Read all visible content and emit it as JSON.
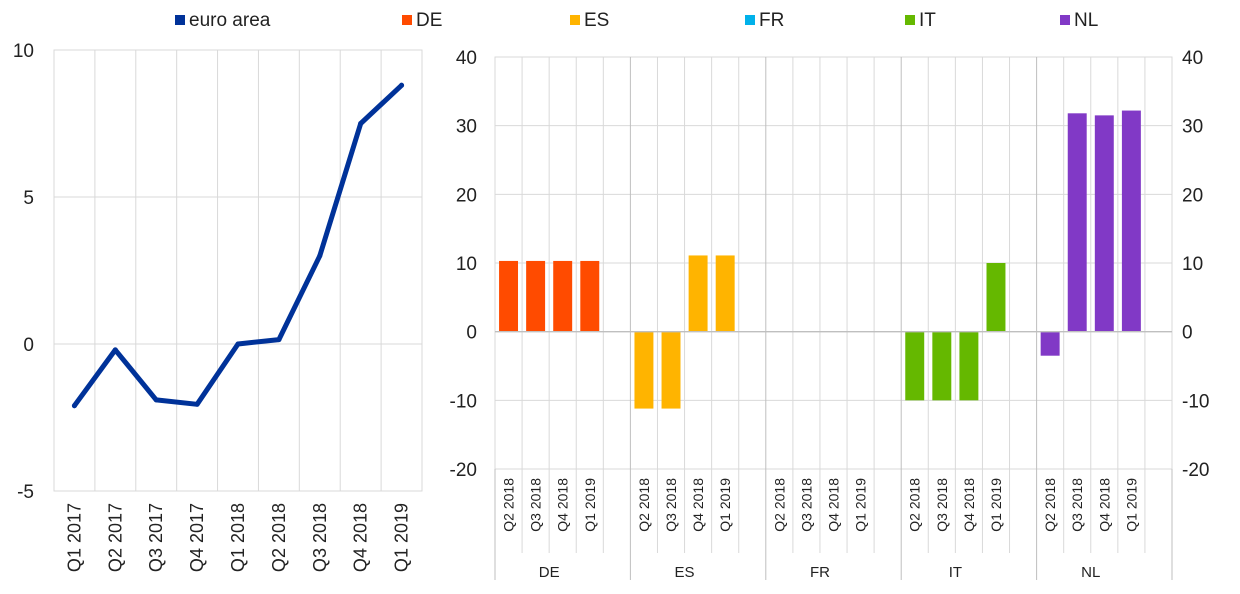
{
  "legend": [
    {
      "label": "euro area",
      "color": "#003299"
    },
    {
      "label": "DE",
      "color": "#FF4B00"
    },
    {
      "label": "ES",
      "color": "#FFB400"
    },
    {
      "label": "FR",
      "color": "#00B1EA"
    },
    {
      "label": "IT",
      "color": "#65B800"
    },
    {
      "label": "NL",
      "color": "#8139C6"
    }
  ],
  "chart_data": [
    {
      "type": "line",
      "categories": [
        "Q1 2017",
        "Q2 2017",
        "Q3 2017",
        "Q4 2017",
        "Q1 2018",
        "Q2 2018",
        "Q3 2018",
        "Q4 2018",
        "Q1 2019"
      ],
      "series": [
        {
          "name": "euro area",
          "color": "#003299",
          "values": [
            -2.1,
            -0.2,
            -1.9,
            -2.05,
            0.0,
            0.15,
            3.0,
            7.5,
            8.8
          ]
        }
      ],
      "ylim": [
        -5,
        10
      ],
      "yticks": [
        -5,
        0,
        5,
        10
      ],
      "ytick_labels": [
        "-5",
        "0",
        "5",
        "10"
      ],
      "grid": true
    },
    {
      "type": "bar",
      "groups": [
        {
          "label": "DE",
          "color": "#FF4B00",
          "categories": [
            "Q2 2018",
            "Q3 2018",
            "Q4 2018",
            "Q1 2019"
          ],
          "values": [
            10.3,
            10.3,
            10.3,
            10.3
          ]
        },
        {
          "label": "ES",
          "color": "#FFB400",
          "categories": [
            "Q2 2018",
            "Q3 2018",
            "Q4 2018",
            "Q1 2019"
          ],
          "values": [
            -11.2,
            -11.2,
            11.1,
            11.1
          ]
        },
        {
          "label": "FR",
          "color": "#00B1EA",
          "categories": [
            "Q2 2018",
            "Q3 2018",
            "Q4 2018",
            "Q1 2019"
          ],
          "values": [
            0,
            0,
            0,
            0
          ]
        },
        {
          "label": "IT",
          "color": "#65B800",
          "categories": [
            "Q2 2018",
            "Q3 2018",
            "Q4 2018",
            "Q1 2019"
          ],
          "values": [
            -10.0,
            -10.0,
            -10.0,
            10.0
          ]
        },
        {
          "label": "NL",
          "color": "#8139C6",
          "categories": [
            "Q2 2018",
            "Q3 2018",
            "Q4 2018",
            "Q1 2019"
          ],
          "values": [
            -3.5,
            31.8,
            31.5,
            32.2
          ]
        }
      ],
      "ylim": [
        -20,
        40
      ],
      "yticks": [
        -20,
        -10,
        0,
        10,
        20,
        30,
        40
      ],
      "ytick_labels": [
        "-20",
        "-10",
        "0",
        "10",
        "20",
        "30",
        "40"
      ],
      "secondary_ytick_labels": [
        "-20",
        "-10",
        "0",
        "10",
        "20",
        "30",
        "40"
      ],
      "grid": true
    }
  ]
}
